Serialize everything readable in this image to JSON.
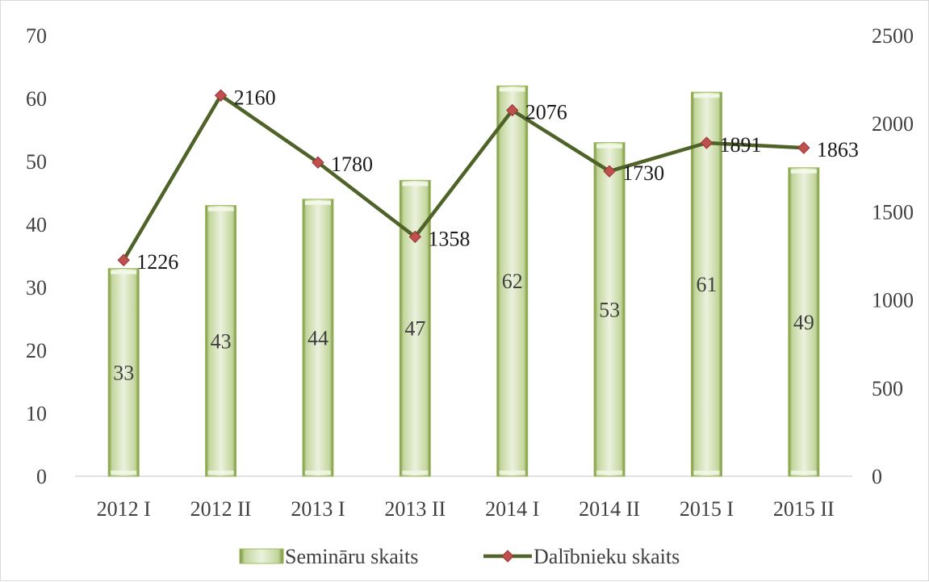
{
  "chart_data": {
    "type": "bar",
    "categories": [
      "2012 I",
      "2012 II",
      "2013 I",
      "2013 II",
      "2014 I",
      "2014 II",
      "2015 I",
      "2015 II"
    ],
    "series": [
      {
        "name": "Semināru skaits",
        "type": "bar",
        "axis": "left",
        "values": [
          33,
          43,
          44,
          47,
          62,
          53,
          61,
          49
        ],
        "color": "#c3d69b"
      },
      {
        "name": "Dalībnieku skaits",
        "type": "line",
        "axis": "right",
        "values": [
          1226,
          2160,
          1780,
          1358,
          2076,
          1730,
          1891,
          1863
        ],
        "color": "#4f6228",
        "marker_color": "#c0504d"
      }
    ],
    "y_left": {
      "ylim": [
        0,
        70
      ],
      "ticks": [
        0,
        10,
        20,
        30,
        40,
        50,
        60,
        70
      ]
    },
    "y_right": {
      "ylim": [
        0,
        2500
      ],
      "ticks": [
        0,
        500,
        1000,
        1500,
        2000,
        2500
      ]
    },
    "grid": false,
    "legend": "bottom"
  }
}
